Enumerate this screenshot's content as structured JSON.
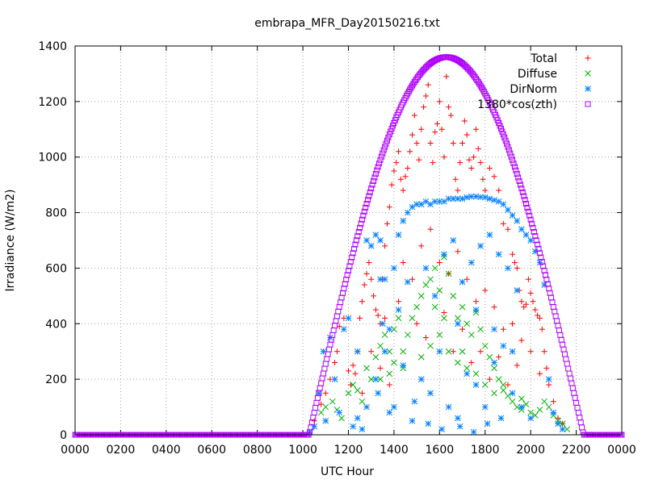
{
  "chart_data": {
    "type": "scatter",
    "title": "embrapa_MFR_Day20150216.txt",
    "xlabel": "UTC Hour",
    "ylabel": "Irradiance (W/m2)",
    "xlim": [
      0,
      24
    ],
    "ylim": [
      0,
      1400
    ],
    "x_ticks": [
      0,
      2,
      4,
      6,
      8,
      10,
      12,
      14,
      16,
      18,
      20,
      22,
      24
    ],
    "x_tick_labels": [
      "0000",
      "0200",
      "0400",
      "0600",
      "0800",
      "1000",
      "1200",
      "1400",
      "1600",
      "1800",
      "2000",
      "2200",
      "0000"
    ],
    "y_ticks": [
      0,
      200,
      400,
      600,
      800,
      1000,
      1200,
      1400
    ],
    "y_tick_labels": [
      "0",
      "200",
      "400",
      "600",
      "800",
      "1000",
      "1200",
      "1400"
    ],
    "grid": true,
    "legend_position": "top-right",
    "series": [
      {
        "name": "Total",
        "marker": "+",
        "color": "#ff0000",
        "points": [
          [
            10.5,
            50
          ],
          [
            10.8,
            110
          ],
          [
            11.0,
            150
          ],
          [
            11.2,
            200
          ],
          [
            11.4,
            260
          ],
          [
            11.5,
            300
          ],
          [
            11.6,
            390
          ],
          [
            11.8,
            420
          ],
          [
            12.0,
            230
          ],
          [
            12.1,
            180
          ],
          [
            12.2,
            250
          ],
          [
            12.4,
            300
          ],
          [
            12.5,
            420
          ],
          [
            12.6,
            480
          ],
          [
            12.7,
            540
          ],
          [
            12.8,
            580
          ],
          [
            12.9,
            620
          ],
          [
            13.0,
            560
          ],
          [
            13.1,
            500
          ],
          [
            13.2,
            450
          ],
          [
            13.3,
            430
          ],
          [
            13.4,
            400
          ],
          [
            13.5,
            560
          ],
          [
            13.6,
            680
          ],
          [
            13.7,
            760
          ],
          [
            13.8,
            820
          ],
          [
            13.9,
            900
          ],
          [
            14.0,
            950
          ],
          [
            14.1,
            980
          ],
          [
            14.2,
            1020
          ],
          [
            14.3,
            920
          ],
          [
            14.4,
            880
          ],
          [
            14.5,
            930
          ],
          [
            14.6,
            960
          ],
          [
            14.7,
            1020
          ],
          [
            14.8,
            1080
          ],
          [
            14.9,
            1150
          ],
          [
            15.0,
            1050
          ],
          [
            15.1,
            990
          ],
          [
            15.2,
            1100
          ],
          [
            15.3,
            1180
          ],
          [
            15.4,
            1220
          ],
          [
            15.5,
            1260
          ],
          [
            15.6,
            1050
          ],
          [
            15.7,
            980
          ],
          [
            15.8,
            1090
          ],
          [
            15.9,
            1120
          ],
          [
            16.0,
            1200
          ],
          [
            16.1,
            1100
          ],
          [
            16.2,
            1000
          ],
          [
            16.3,
            1290
          ],
          [
            16.4,
            1180
          ],
          [
            16.5,
            1150
          ],
          [
            16.6,
            1050
          ],
          [
            16.7,
            920
          ],
          [
            16.8,
            880
          ],
          [
            16.9,
            980
          ],
          [
            17.0,
            1050
          ],
          [
            17.1,
            1130
          ],
          [
            17.2,
            1080
          ],
          [
            17.3,
            990
          ],
          [
            17.4,
            960
          ],
          [
            17.5,
            1000
          ],
          [
            17.6,
            1100
          ],
          [
            17.7,
            1030
          ],
          [
            17.8,
            980
          ],
          [
            17.9,
            920
          ],
          [
            18.0,
            880
          ],
          [
            18.2,
            960
          ],
          [
            18.4,
            930
          ],
          [
            18.6,
            880
          ],
          [
            18.8,
            760
          ],
          [
            19.0,
            740
          ],
          [
            19.2,
            650
          ],
          [
            19.3,
            620
          ],
          [
            19.4,
            600
          ],
          [
            19.5,
            520
          ],
          [
            19.6,
            480
          ],
          [
            19.7,
            460
          ],
          [
            19.8,
            470
          ],
          [
            19.9,
            560
          ],
          [
            20.0,
            510
          ],
          [
            20.1,
            480
          ],
          [
            20.2,
            450
          ],
          [
            20.3,
            430
          ],
          [
            20.4,
            420
          ],
          [
            20.5,
            380
          ],
          [
            20.6,
            300
          ],
          [
            20.7,
            240
          ],
          [
            20.8,
            180
          ],
          [
            21.0,
            120
          ],
          [
            21.2,
            60
          ],
          [
            21.4,
            40
          ],
          [
            12.3,
            220
          ],
          [
            12.6,
            150
          ],
          [
            13.0,
            300
          ],
          [
            13.4,
            240
          ],
          [
            13.8,
            180
          ],
          [
            14.4,
            620
          ],
          [
            14.8,
            560
          ],
          [
            15.2,
            680
          ],
          [
            15.6,
            740
          ],
          [
            16.0,
            620
          ],
          [
            16.4,
            580
          ],
          [
            16.8,
            660
          ],
          [
            17.2,
            560
          ],
          [
            17.6,
            480
          ],
          [
            18.0,
            520
          ],
          [
            18.4,
            460
          ],
          [
            18.8,
            380
          ],
          [
            19.2,
            400
          ],
          [
            19.6,
            340
          ],
          [
            20.0,
            300
          ],
          [
            20.4,
            220
          ],
          [
            15.0,
            400
          ],
          [
            15.4,
            350
          ],
          [
            16.2,
            440
          ],
          [
            17.0,
            380
          ],
          [
            17.8,
            300
          ],
          [
            18.6,
            280
          ],
          [
            19.4,
            250
          ],
          [
            14.2,
            480
          ],
          [
            13.6,
            420
          ],
          [
            16.6,
            300
          ],
          [
            17.4,
            260
          ],
          [
            18.2,
            200
          ],
          [
            19.0,
            180
          ]
        ]
      },
      {
        "name": "Diffuse",
        "marker": "x",
        "color": "#00b000",
        "points": [
          [
            10.5,
            30
          ],
          [
            10.8,
            80
          ],
          [
            11.0,
            100
          ],
          [
            11.3,
            120
          ],
          [
            11.5,
            90
          ],
          [
            11.7,
            60
          ],
          [
            12.0,
            150
          ],
          [
            12.2,
            180
          ],
          [
            12.4,
            160
          ],
          [
            12.6,
            120
          ],
          [
            12.8,
            240
          ],
          [
            13.0,
            200
          ],
          [
            13.2,
            280
          ],
          [
            13.4,
            320
          ],
          [
            13.6,
            360
          ],
          [
            13.8,
            300
          ],
          [
            14.0,
            380
          ],
          [
            14.2,
            420
          ],
          [
            14.4,
            300
          ],
          [
            14.6,
            360
          ],
          [
            14.8,
            420
          ],
          [
            15.0,
            460
          ],
          [
            15.2,
            500
          ],
          [
            15.4,
            540
          ],
          [
            15.6,
            560
          ],
          [
            15.8,
            600
          ],
          [
            16.0,
            520
          ],
          [
            16.2,
            640
          ],
          [
            16.4,
            580
          ],
          [
            16.6,
            500
          ],
          [
            16.8,
            420
          ],
          [
            17.0,
            460
          ],
          [
            17.2,
            400
          ],
          [
            17.4,
            360
          ],
          [
            17.6,
            440
          ],
          [
            17.8,
            380
          ],
          [
            18.0,
            320
          ],
          [
            18.2,
            280
          ],
          [
            18.4,
            240
          ],
          [
            18.6,
            200
          ],
          [
            18.8,
            160
          ],
          [
            19.0,
            140
          ],
          [
            19.2,
            120
          ],
          [
            19.4,
            100
          ],
          [
            19.6,
            90
          ],
          [
            19.8,
            110
          ],
          [
            20.0,
            80
          ],
          [
            20.2,
            70
          ],
          [
            20.4,
            90
          ],
          [
            20.6,
            120
          ],
          [
            20.8,
            100
          ],
          [
            21.0,
            70
          ],
          [
            21.2,
            50
          ],
          [
            21.4,
            40
          ],
          [
            21.6,
            20
          ],
          [
            15.2,
            280
          ],
          [
            15.6,
            320
          ],
          [
            16.0,
            360
          ],
          [
            16.4,
            300
          ],
          [
            16.8,
            260
          ],
          [
            17.2,
            240
          ],
          [
            17.6,
            220
          ],
          [
            18.0,
            180
          ],
          [
            18.4,
            150
          ],
          [
            14.4,
            240
          ],
          [
            14.0,
            260
          ],
          [
            13.8,
            220
          ],
          [
            13.4,
            200
          ],
          [
            16.2,
            420
          ],
          [
            15.8,
            460
          ],
          [
            17.0,
            300
          ],
          [
            18.8,
            180
          ],
          [
            19.6,
            130
          ]
        ]
      },
      {
        "name": "DirNorm",
        "marker": "*",
        "color": "#0080ff",
        "points": [
          [
            10.3,
            10
          ],
          [
            10.5,
            30
          ],
          [
            10.7,
            150
          ],
          [
            10.9,
            300
          ],
          [
            11.0,
            50
          ],
          [
            11.2,
            350
          ],
          [
            11.4,
            200
          ],
          [
            11.6,
            80
          ],
          [
            11.8,
            380
          ],
          [
            12.0,
            420
          ],
          [
            12.2,
            30
          ],
          [
            12.4,
            60
          ],
          [
            12.6,
            20
          ],
          [
            12.8,
            700
          ],
          [
            13.0,
            680
          ],
          [
            13.2,
            720
          ],
          [
            13.3,
            150
          ],
          [
            13.4,
            700
          ],
          [
            13.5,
            400
          ],
          [
            13.6,
            560
          ],
          [
            13.8,
            80
          ],
          [
            14.0,
            600
          ],
          [
            14.2,
            720
          ],
          [
            14.4,
            770
          ],
          [
            14.6,
            800
          ],
          [
            14.8,
            820
          ],
          [
            15.0,
            830
          ],
          [
            15.2,
            830
          ],
          [
            15.4,
            840
          ],
          [
            15.6,
            830
          ],
          [
            15.8,
            840
          ],
          [
            16.0,
            840
          ],
          [
            16.2,
            840
          ],
          [
            16.4,
            850
          ],
          [
            16.6,
            850
          ],
          [
            16.8,
            850
          ],
          [
            17.0,
            850
          ],
          [
            17.2,
            855
          ],
          [
            17.4,
            858
          ],
          [
            17.6,
            858
          ],
          [
            17.8,
            856
          ],
          [
            18.0,
            855
          ],
          [
            18.2,
            850
          ],
          [
            18.4,
            845
          ],
          [
            18.6,
            840
          ],
          [
            18.8,
            830
          ],
          [
            19.0,
            810
          ],
          [
            19.2,
            790
          ],
          [
            19.4,
            770
          ],
          [
            19.6,
            740
          ],
          [
            19.8,
            720
          ],
          [
            20.0,
            700
          ],
          [
            20.2,
            660
          ],
          [
            20.4,
            620
          ],
          [
            20.6,
            540
          ],
          [
            20.8,
            200
          ],
          [
            21.0,
            80
          ],
          [
            21.2,
            40
          ],
          [
            21.4,
            20
          ],
          [
            12.4,
            300
          ],
          [
            12.8,
            100
          ],
          [
            13.2,
            200
          ],
          [
            13.6,
            300
          ],
          [
            14.0,
            100
          ],
          [
            14.4,
            250
          ],
          [
            14.8,
            50
          ],
          [
            15.2,
            200
          ],
          [
            15.6,
            150
          ],
          [
            16.0,
            300
          ],
          [
            16.4,
            100
          ],
          [
            16.8,
            60
          ],
          [
            17.2,
            220
          ],
          [
            17.6,
            180
          ],
          [
            18.0,
            100
          ],
          [
            18.4,
            260
          ],
          [
            18.8,
            320
          ],
          [
            19.2,
            150
          ],
          [
            19.6,
            100
          ],
          [
            20.0,
            60
          ],
          [
            15.4,
            600
          ],
          [
            15.8,
            500
          ],
          [
            16.2,
            650
          ],
          [
            16.6,
            700
          ],
          [
            17.0,
            550
          ],
          [
            17.4,
            620
          ],
          [
            17.8,
            680
          ],
          [
            18.2,
            720
          ],
          [
            18.6,
            650
          ],
          [
            19.0,
            600
          ],
          [
            19.4,
            520
          ],
          [
            14.6,
            550
          ],
          [
            14.2,
            450
          ],
          [
            13.8,
            380
          ],
          [
            13.4,
            560
          ],
          [
            16.8,
            400
          ],
          [
            17.6,
            450
          ],
          [
            18.4,
            380
          ],
          [
            19.2,
            300
          ],
          [
            14.9,
            120
          ],
          [
            15.5,
            40
          ],
          [
            16.1,
            20
          ],
          [
            16.9,
            30
          ],
          [
            17.5,
            10
          ],
          [
            18.1,
            40
          ],
          [
            18.7,
            60
          ]
        ]
      },
      {
        "name": "1380*cos(zth)",
        "marker": "square",
        "color": "#b000ff",
        "amplitude": 1360,
        "x_rise": 10.3,
        "x_set": 22.35,
        "x_noon": 16.3
      }
    ]
  }
}
